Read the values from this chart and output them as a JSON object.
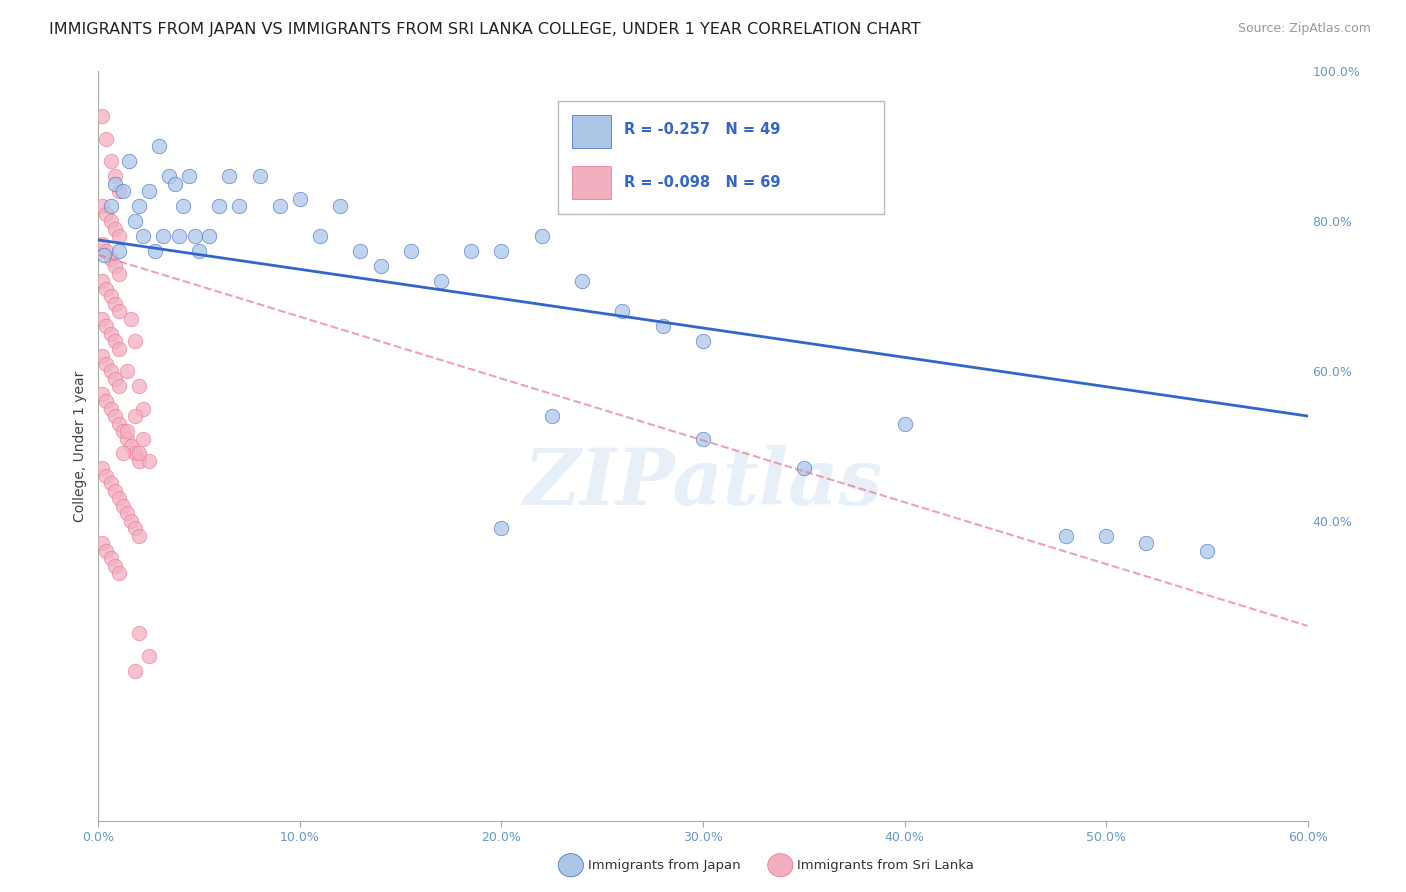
{
  "title": "IMMIGRANTS FROM JAPAN VS IMMIGRANTS FROM SRI LANKA COLLEGE, UNDER 1 YEAR CORRELATION CHART",
  "source": "Source: ZipAtlas.com",
  "ylabel": "College, Under 1 year",
  "legend_R_blue": "-0.257",
  "legend_N_blue": "49",
  "legend_R_pink": "-0.098",
  "legend_N_pink": "69",
  "color_blue": "#adc6e8",
  "color_pink": "#f2afc0",
  "color_blue_line": "#3366cc",
  "color_pink_line": "#e8708a",
  "color_axis_right": "#6699cc",
  "xmin": 0.0,
  "xmax": 0.6,
  "ymin": 0.0,
  "ymax": 1.0,
  "xtick_labels": [
    "0.0%",
    "10.0%",
    "20.0%",
    "30.0%",
    "40.0%",
    "50.0%",
    "60.0%"
  ],
  "xtick_vals": [
    0.0,
    0.1,
    0.2,
    0.3,
    0.4,
    0.5,
    0.6
  ],
  "ytick_labels_right": [
    "100.0%",
    "80.0%",
    "60.0%",
    "40.0%"
  ],
  "ytick_vals_right": [
    1.0,
    0.8,
    0.6,
    0.4
  ],
  "footer_label_blue": "Immigrants from Japan",
  "footer_label_pink": "Immigrants from Sri Lanka",
  "japan_x": [
    0.003,
    0.006,
    0.008,
    0.01,
    0.012,
    0.015,
    0.018,
    0.02,
    0.022,
    0.025,
    0.028,
    0.03,
    0.032,
    0.035,
    0.038,
    0.04,
    0.042,
    0.045,
    0.048,
    0.05,
    0.055,
    0.06,
    0.065,
    0.07,
    0.08,
    0.09,
    0.1,
    0.11,
    0.12,
    0.13,
    0.14,
    0.155,
    0.17,
    0.185,
    0.2,
    0.22,
    0.24,
    0.26,
    0.28,
    0.3,
    0.2,
    0.225,
    0.3,
    0.35,
    0.4,
    0.48,
    0.5,
    0.52,
    0.55
  ],
  "japan_y": [
    0.755,
    0.82,
    0.85,
    0.76,
    0.84,
    0.88,
    0.8,
    0.82,
    0.78,
    0.84,
    0.76,
    0.9,
    0.78,
    0.86,
    0.85,
    0.78,
    0.82,
    0.86,
    0.78,
    0.76,
    0.78,
    0.82,
    0.86,
    0.82,
    0.86,
    0.82,
    0.83,
    0.78,
    0.82,
    0.76,
    0.74,
    0.76,
    0.72,
    0.76,
    0.76,
    0.78,
    0.72,
    0.68,
    0.66,
    0.64,
    0.39,
    0.54,
    0.51,
    0.47,
    0.53,
    0.38,
    0.38,
    0.37,
    0.36
  ],
  "srilanka_x": [
    0.002,
    0.004,
    0.006,
    0.008,
    0.01,
    0.002,
    0.004,
    0.006,
    0.008,
    0.01,
    0.002,
    0.004,
    0.006,
    0.008,
    0.01,
    0.002,
    0.004,
    0.006,
    0.008,
    0.01,
    0.002,
    0.004,
    0.006,
    0.008,
    0.01,
    0.002,
    0.004,
    0.006,
    0.008,
    0.01,
    0.002,
    0.004,
    0.006,
    0.008,
    0.01,
    0.012,
    0.014,
    0.016,
    0.018,
    0.02,
    0.002,
    0.004,
    0.006,
    0.008,
    0.01,
    0.012,
    0.014,
    0.016,
    0.018,
    0.02,
    0.002,
    0.004,
    0.006,
    0.008,
    0.01,
    0.012,
    0.014,
    0.016,
    0.018,
    0.02,
    0.022,
    0.025,
    0.018,
    0.02,
    0.025,
    0.022,
    0.014,
    0.02,
    0.018
  ],
  "srilanka_y": [
    0.94,
    0.91,
    0.88,
    0.86,
    0.84,
    0.82,
    0.81,
    0.8,
    0.79,
    0.78,
    0.77,
    0.76,
    0.75,
    0.74,
    0.73,
    0.72,
    0.71,
    0.7,
    0.69,
    0.68,
    0.67,
    0.66,
    0.65,
    0.64,
    0.63,
    0.62,
    0.61,
    0.6,
    0.59,
    0.58,
    0.57,
    0.56,
    0.55,
    0.54,
    0.53,
    0.52,
    0.51,
    0.5,
    0.49,
    0.48,
    0.47,
    0.46,
    0.45,
    0.44,
    0.43,
    0.42,
    0.41,
    0.4,
    0.39,
    0.38,
    0.37,
    0.36,
    0.35,
    0.34,
    0.33,
    0.49,
    0.6,
    0.67,
    0.64,
    0.58,
    0.51,
    0.48,
    0.2,
    0.25,
    0.22,
    0.55,
    0.52,
    0.49,
    0.54
  ],
  "japan_trendline_x": [
    0.0,
    0.6
  ],
  "japan_trendline_y": [
    0.775,
    0.54
  ],
  "srilanka_trendline_x": [
    0.0,
    0.6
  ],
  "srilanka_trendline_y": [
    0.755,
    0.26
  ],
  "watermark": "ZIPatlas",
  "background_color": "#ffffff",
  "grid_color": "#d0d0d0",
  "title_fontsize": 11.5,
  "axis_fontsize": 10,
  "tick_fontsize": 9,
  "source_fontsize": 9
}
